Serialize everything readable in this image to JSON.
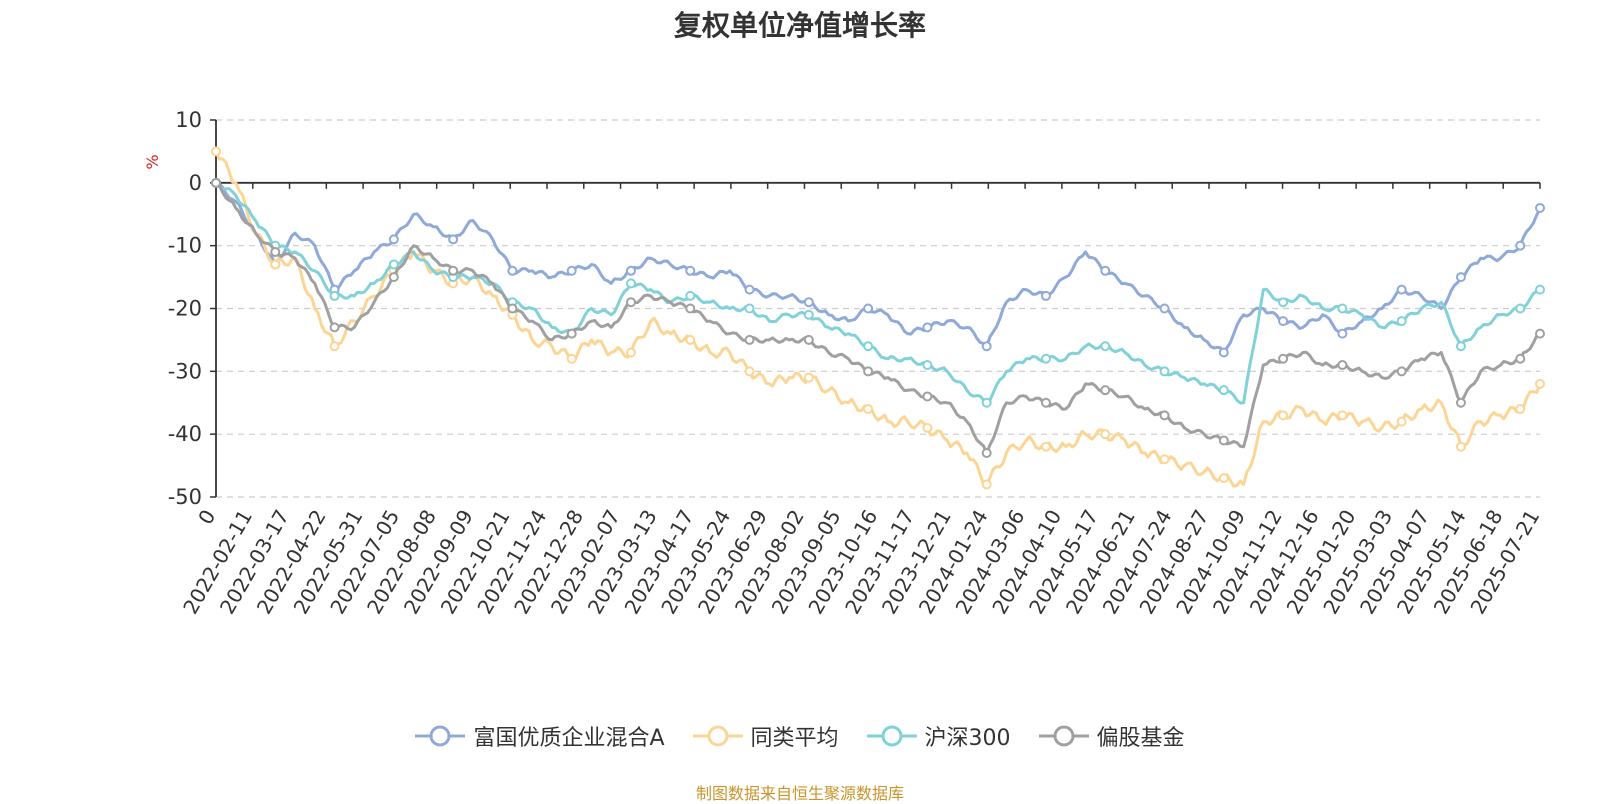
{
  "chart_data": {
    "type": "line",
    "title": "复权单位净值增长率",
    "ylabel": "%",
    "ylim": [
      -50,
      10
    ],
    "yticks": [
      10,
      0,
      -10,
      -20,
      -30,
      -40,
      -50
    ],
    "x_ticks": [
      "0",
      "2022-02-11",
      "2022-03-17",
      "2022-04-22",
      "2022-05-31",
      "2022-07-05",
      "2022-08-08",
      "2022-09-09",
      "2022-10-21",
      "2022-11-24",
      "2022-12-28",
      "2023-02-07",
      "2023-03-13",
      "2023-04-17",
      "2023-05-24",
      "2023-06-29",
      "2023-08-02",
      "2023-09-05",
      "2023-10-16",
      "2023-11-17",
      "2023-12-21",
      "2024-01-24",
      "2024-03-06",
      "2024-04-10",
      "2024-05-17",
      "2024-06-21",
      "2024-07-24",
      "2024-08-27",
      "2024-10-09",
      "2024-11-12",
      "2024-12-16",
      "2025-01-20",
      "2025-03-03",
      "2025-04-07",
      "2025-05-14",
      "2025-06-18",
      "2025-07-21"
    ],
    "grid": "horizontal dashed",
    "legend_position": "bottom",
    "series": [
      {
        "name": "富国优质企业混合A",
        "color": "#8fa9d8",
        "values": [
          0,
          -3,
          -8,
          -13,
          -8,
          -10,
          -17,
          -14,
          -11,
          -9,
          -5,
          -7,
          -9,
          -6,
          -9,
          -14,
          -14,
          -15,
          -14,
          -13,
          -16,
          -14,
          -12,
          -13,
          -14,
          -15,
          -14,
          -17,
          -18,
          -18,
          -19,
          -21,
          -22,
          -20,
          -21,
          -24,
          -23,
          -22,
          -23,
          -26,
          -19,
          -17,
          -18,
          -15,
          -11,
          -14,
          -16,
          -18,
          -20,
          -23,
          -25,
          -27,
          -21,
          -20,
          -22,
          -23,
          -21,
          -24,
          -22,
          -20,
          -17,
          -18,
          -20,
          -15,
          -12,
          -12,
          -10,
          -4
        ]
      },
      {
        "name": "同类平均",
        "color": "#fcd594",
        "values": [
          5,
          0,
          -8,
          -13,
          -12,
          -20,
          -26,
          -22,
          -18,
          -14,
          -11,
          -14,
          -16,
          -15,
          -18,
          -21,
          -25,
          -26,
          -28,
          -25,
          -27,
          -27,
          -22,
          -24,
          -25,
          -27,
          -27,
          -30,
          -32,
          -31,
          -31,
          -33,
          -35,
          -36,
          -38,
          -38,
          -39,
          -41,
          -43,
          -48,
          -43,
          -41,
          -42,
          -42,
          -40,
          -40,
          -41,
          -43,
          -44,
          -45,
          -46,
          -47,
          -48,
          -38,
          -37,
          -36,
          -38,
          -37,
          -38,
          -39,
          -38,
          -36,
          -35,
          -42,
          -38,
          -37,
          -36,
          -32
        ]
      },
      {
        "name": "沪深300",
        "color": "#80d1d8",
        "values": [
          0,
          -2,
          -6,
          -10,
          -11,
          -14,
          -18,
          -18,
          -16,
          -13,
          -11,
          -14,
          -15,
          -15,
          -16,
          -19,
          -20,
          -23,
          -24,
          -20,
          -21,
          -16,
          -17,
          -19,
          -18,
          -19,
          -20,
          -20,
          -22,
          -21,
          -21,
          -23,
          -24,
          -26,
          -28,
          -28,
          -29,
          -30,
          -33,
          -35,
          -30,
          -28,
          -28,
          -28,
          -26,
          -26,
          -27,
          -29,
          -30,
          -31,
          -32,
          -33,
          -35,
          -17,
          -19,
          -18,
          -20,
          -20,
          -21,
          -23,
          -22,
          -20,
          -19,
          -26,
          -23,
          -21,
          -20,
          -17
        ]
      },
      {
        "name": "偏股基金",
        "color": "#a0a0a0",
        "values": [
          0,
          -4,
          -8,
          -11,
          -12,
          -16,
          -23,
          -23,
          -19,
          -15,
          -10,
          -12,
          -14,
          -14,
          -16,
          -20,
          -22,
          -25,
          -24,
          -22,
          -23,
          -19,
          -18,
          -19,
          -20,
          -22,
          -24,
          -25,
          -25,
          -25,
          -25,
          -27,
          -28,
          -30,
          -31,
          -33,
          -34,
          -35,
          -38,
          -43,
          -35,
          -34,
          -35,
          -36,
          -32,
          -33,
          -34,
          -36,
          -37,
          -39,
          -40,
          -41,
          -42,
          -29,
          -28,
          -27,
          -29,
          -29,
          -30,
          -31,
          -30,
          -28,
          -27,
          -35,
          -30,
          -29,
          -28,
          -24
        ]
      }
    ],
    "source": "制图数据来自恒生聚源数据库"
  }
}
